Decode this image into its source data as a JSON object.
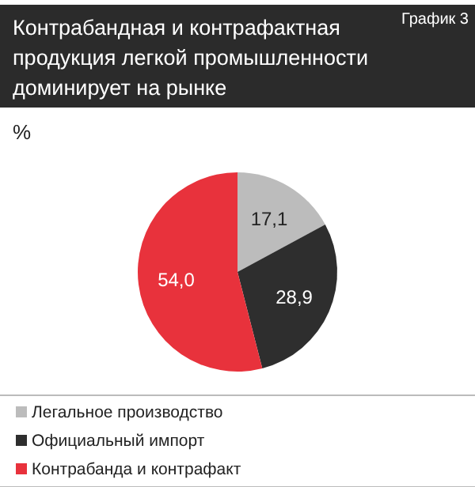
{
  "chart_data": {
    "type": "pie",
    "title": "Контрабандная и контрафактная продукция легкой промышленности доминирует на рынке",
    "annotations": [
      "График 3",
      "%"
    ],
    "categories": [
      "Легальное производство",
      "Официальный импорт",
      "Контрабанда и контрафакт"
    ],
    "values": [
      17.1,
      28.9,
      54.0
    ],
    "value_labels": [
      "17,1",
      "28,9",
      "54,0"
    ],
    "colors": [
      "#bcbcbc",
      "#2e2e2e",
      "#e8323c"
    ],
    "legend": "bottom"
  }
}
